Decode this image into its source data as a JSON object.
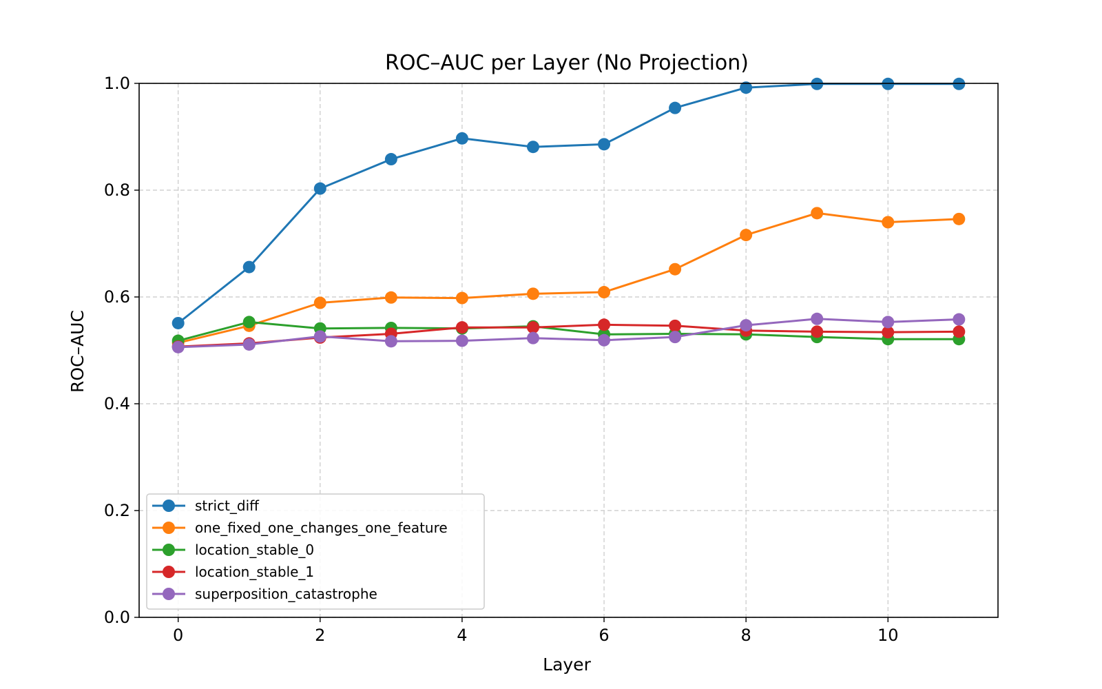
{
  "chart_data": {
    "type": "line",
    "title": "ROC–AUC per Layer (No Projection)",
    "xlabel": "Layer",
    "ylabel": "ROC–AUC",
    "x": [
      0,
      1,
      2,
      3,
      4,
      5,
      6,
      7,
      8,
      9,
      10,
      11
    ],
    "xlim": [
      -0.55,
      11.55
    ],
    "ylim": [
      0.0,
      1.0
    ],
    "xticks": [
      0,
      2,
      4,
      6,
      8,
      10
    ],
    "xtick_labels": [
      "0",
      "2",
      "4",
      "6",
      "8",
      "10"
    ],
    "yticks": [
      0.0,
      0.2,
      0.4,
      0.6,
      0.8,
      1.0
    ],
    "ytick_labels": [
      "0.0",
      "0.2",
      "0.4",
      "0.6",
      "0.8",
      "1.0"
    ],
    "grid": true,
    "legend_position": "lower-left",
    "series": [
      {
        "name": "strict_diff",
        "color": "#1f77b4",
        "values": [
          0.551,
          0.656,
          0.803,
          0.858,
          0.897,
          0.881,
          0.886,
          0.954,
          0.992,
          0.999,
          0.999,
          0.999
        ]
      },
      {
        "name": "one_fixed_one_changes_one_feature",
        "color": "#ff7f0e",
        "values": [
          0.514,
          0.546,
          0.589,
          0.599,
          0.598,
          0.606,
          0.609,
          0.652,
          0.716,
          0.757,
          0.74,
          0.746
        ]
      },
      {
        "name": "location_stable_0",
        "color": "#2ca02c",
        "values": [
          0.518,
          0.553,
          0.541,
          0.542,
          0.541,
          0.545,
          0.53,
          0.531,
          0.53,
          0.525,
          0.521,
          0.521
        ]
      },
      {
        "name": "location_stable_1",
        "color": "#d62728",
        "values": [
          0.507,
          0.513,
          0.524,
          0.531,
          0.543,
          0.543,
          0.548,
          0.546,
          0.537,
          0.535,
          0.534,
          0.535
        ]
      },
      {
        "name": "superposition_catastrophe",
        "color": "#9467bd",
        "values": [
          0.506,
          0.511,
          0.526,
          0.517,
          0.518,
          0.523,
          0.519,
          0.525,
          0.547,
          0.559,
          0.553,
          0.558
        ]
      }
    ]
  }
}
